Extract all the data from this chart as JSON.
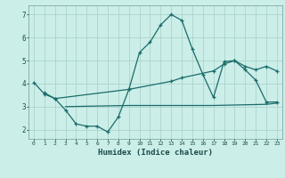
{
  "line1_x": [
    0,
    1,
    2,
    3,
    4,
    5,
    6,
    7,
    8,
    9,
    10,
    11,
    12,
    13,
    14,
    15,
    16,
    17,
    18,
    19,
    20,
    21,
    22,
    23
  ],
  "line1_y": [
    4.05,
    3.55,
    3.35,
    2.85,
    2.25,
    2.15,
    2.15,
    1.9,
    2.55,
    3.75,
    5.35,
    5.8,
    6.55,
    7.0,
    6.75,
    5.5,
    4.4,
    3.4,
    4.95,
    5.0,
    4.6,
    4.15,
    3.2,
    3.2
  ],
  "line2_x": [
    1,
    2,
    9,
    13,
    14,
    17,
    18,
    19,
    20,
    21,
    22,
    23
  ],
  "line2_y": [
    3.6,
    3.35,
    3.75,
    4.1,
    4.25,
    4.55,
    4.85,
    5.0,
    4.75,
    4.6,
    4.75,
    4.55
  ],
  "line3_x": [
    3,
    9,
    17,
    22,
    23
  ],
  "line3_y": [
    3.0,
    3.05,
    3.05,
    3.1,
    3.15
  ],
  "color": "#1a6b6b",
  "bg_color": "#cceee8",
  "grid_color": "#aad4cc",
  "xlabel": "Humidex (Indice chaleur)",
  "ylim": [
    1.6,
    7.4
  ],
  "xlim": [
    -0.5,
    23.5
  ],
  "yticks": [
    2,
    3,
    4,
    5,
    6,
    7
  ],
  "xticks": [
    0,
    1,
    2,
    3,
    4,
    5,
    6,
    7,
    8,
    9,
    10,
    11,
    12,
    13,
    14,
    15,
    16,
    17,
    18,
    19,
    20,
    21,
    22,
    23
  ],
  "figsize": [
    3.2,
    2.0
  ],
  "dpi": 100
}
